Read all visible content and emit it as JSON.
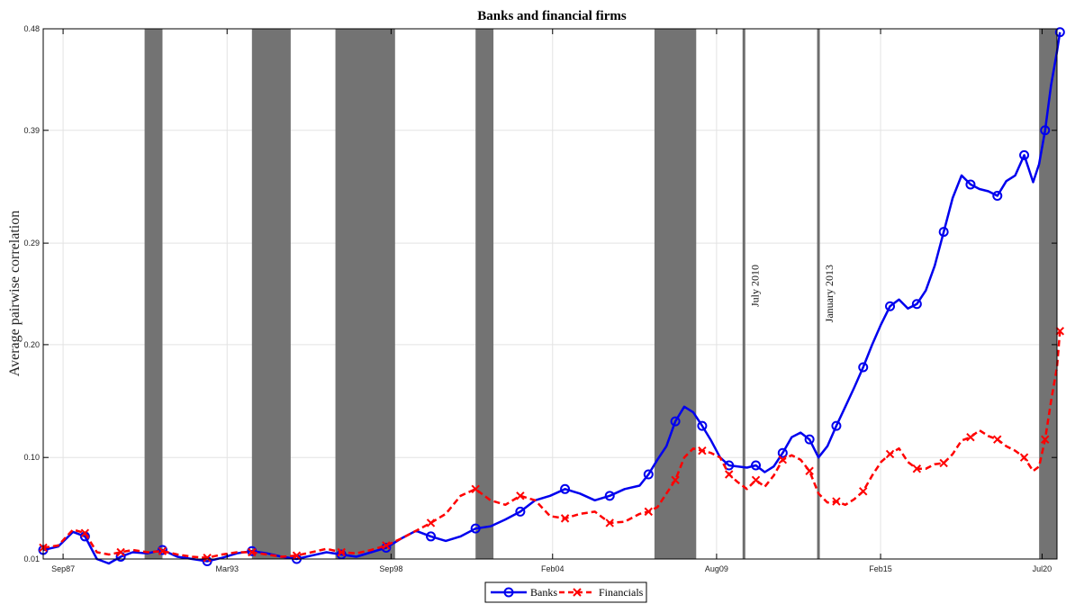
{
  "chart_data": {
    "type": "line",
    "title": "Banks and financial firms",
    "xlabel": "",
    "ylabel": "Average pairwise correlation",
    "x_start": "Jan87",
    "x_end": "Dec20",
    "xticks": [
      "Sep87",
      "Mar93",
      "Sep98",
      "Feb04",
      "Aug09",
      "Feb15",
      "Jul20"
    ],
    "yticks": [
      "0.01",
      "0.10",
      "0.20",
      "0.29",
      "0.39",
      "0.48"
    ],
    "ylim": [
      0.01,
      0.48
    ],
    "grid": true,
    "legend_position": "bottom-center",
    "shaded_periods": [
      [
        "1990.4",
        "1991.0"
      ],
      [
        "1994.0",
        "1995.3"
      ],
      [
        "1996.8",
        "1998.8"
      ],
      [
        "2001.5",
        "2002.1"
      ],
      [
        "2007.5",
        "2008.9"
      ]
    ],
    "shaded_end_period": [
      "2020.4",
      "2021.2"
    ],
    "vertical_lines": [
      {
        "x": "2010.5",
        "label": "July 2010"
      },
      {
        "x": "2013.0",
        "label": "January 2013"
      }
    ],
    "series": [
      {
        "name": "Banks",
        "color": "#0000ee",
        "dash": "solid",
        "marker": "circle",
        "x": [
          1987.0,
          1987.5,
          1988.0,
          1988.4,
          1988.8,
          1989.2,
          1989.6,
          1990.0,
          1990.5,
          1991.0,
          1991.5,
          1992.0,
          1992.5,
          1993.0,
          1993.5,
          1994.0,
          1994.5,
          1995.0,
          1995.5,
          1996.0,
          1996.5,
          1997.0,
          1997.5,
          1998.0,
          1998.5,
          1999.0,
          1999.5,
          2000.0,
          2000.5,
          2001.0,
          2001.5,
          2002.0,
          2002.5,
          2003.0,
          2003.5,
          2004.0,
          2004.5,
          2005.0,
          2005.5,
          2006.0,
          2006.5,
          2007.0,
          2007.3,
          2007.6,
          2007.9,
          2008.2,
          2008.5,
          2008.8,
          2009.1,
          2009.4,
          2009.7,
          2010.0,
          2010.3,
          2010.6,
          2010.9,
          2011.2,
          2011.5,
          2011.8,
          2012.1,
          2012.4,
          2012.7,
          2013.0,
          2013.3,
          2013.6,
          2013.9,
          2014.2,
          2014.5,
          2014.8,
          2015.1,
          2015.4,
          2015.7,
          2016.0,
          2016.3,
          2016.6,
          2016.9,
          2017.2,
          2017.5,
          2017.8,
          2018.1,
          2018.4,
          2018.7,
          2019.0,
          2019.3,
          2019.6,
          2019.9,
          2020.2,
          2020.4,
          2020.6,
          2020.8,
          2021.0,
          2021.1
        ],
        "values": [
          0.018,
          0.021,
          0.034,
          0.03,
          0.01,
          0.006,
          0.012,
          0.016,
          0.015,
          0.018,
          0.012,
          0.01,
          0.008,
          0.011,
          0.015,
          0.017,
          0.015,
          0.012,
          0.01,
          0.013,
          0.016,
          0.014,
          0.012,
          0.016,
          0.02,
          0.028,
          0.035,
          0.03,
          0.026,
          0.03,
          0.037,
          0.039,
          0.045,
          0.052,
          0.062,
          0.066,
          0.072,
          0.068,
          0.062,
          0.066,
          0.072,
          0.075,
          0.085,
          0.098,
          0.11,
          0.132,
          0.145,
          0.14,
          0.128,
          0.115,
          0.1,
          0.093,
          0.092,
          0.091,
          0.093,
          0.087,
          0.092,
          0.104,
          0.118,
          0.122,
          0.116,
          0.1,
          0.11,
          0.128,
          0.145,
          0.162,
          0.18,
          0.2,
          0.218,
          0.234,
          0.24,
          0.232,
          0.236,
          0.248,
          0.27,
          0.3,
          0.33,
          0.35,
          0.342,
          0.338,
          0.336,
          0.332,
          0.345,
          0.35,
          0.368,
          0.344,
          0.36,
          0.39,
          0.43,
          0.46,
          0.477
        ]
      },
      {
        "name": "Financials",
        "color": "#ff0000",
        "dash": "dashed",
        "marker": "x",
        "x": [
          1987.0,
          1987.5,
          1988.0,
          1988.4,
          1988.8,
          1989.2,
          1989.6,
          1990.0,
          1990.5,
          1991.0,
          1991.5,
          1992.0,
          1992.5,
          1993.0,
          1993.5,
          1994.0,
          1994.5,
          1995.0,
          1995.5,
          1996.0,
          1996.5,
          1997.0,
          1997.5,
          1998.0,
          1998.5,
          1999.0,
          1999.5,
          2000.0,
          2000.5,
          2001.0,
          2001.5,
          2002.0,
          2002.5,
          2003.0,
          2003.5,
          2004.0,
          2004.5,
          2005.0,
          2005.5,
          2006.0,
          2006.5,
          2007.0,
          2007.3,
          2007.6,
          2007.9,
          2008.2,
          2008.5,
          2008.8,
          2009.1,
          2009.4,
          2009.7,
          2010.0,
          2010.3,
          2010.6,
          2010.9,
          2011.2,
          2011.5,
          2011.8,
          2012.1,
          2012.4,
          2012.7,
          2013.0,
          2013.3,
          2013.6,
          2013.9,
          2014.2,
          2014.5,
          2014.8,
          2015.1,
          2015.4,
          2015.7,
          2016.0,
          2016.3,
          2016.6,
          2016.9,
          2017.2,
          2017.5,
          2017.8,
          2018.1,
          2018.4,
          2018.7,
          2019.0,
          2019.3,
          2019.6,
          2019.9,
          2020.2,
          2020.4,
          2020.6,
          2020.8,
          2021.0,
          2021.1
        ],
        "values": [
          0.02,
          0.022,
          0.036,
          0.033,
          0.016,
          0.014,
          0.016,
          0.018,
          0.016,
          0.017,
          0.014,
          0.012,
          0.011,
          0.014,
          0.016,
          0.016,
          0.014,
          0.012,
          0.013,
          0.016,
          0.019,
          0.016,
          0.015,
          0.018,
          0.022,
          0.028,
          0.035,
          0.042,
          0.05,
          0.066,
          0.072,
          0.062,
          0.058,
          0.066,
          0.062,
          0.048,
          0.046,
          0.05,
          0.052,
          0.042,
          0.043,
          0.05,
          0.052,
          0.056,
          0.068,
          0.08,
          0.1,
          0.108,
          0.106,
          0.104,
          0.1,
          0.085,
          0.078,
          0.072,
          0.08,
          0.074,
          0.084,
          0.098,
          0.102,
          0.098,
          0.088,
          0.068,
          0.06,
          0.061,
          0.058,
          0.063,
          0.07,
          0.084,
          0.096,
          0.103,
          0.108,
          0.096,
          0.09,
          0.09,
          0.094,
          0.095,
          0.103,
          0.115,
          0.118,
          0.124,
          0.119,
          0.116,
          0.11,
          0.106,
          0.1,
          0.088,
          0.092,
          0.116,
          0.15,
          0.18,
          0.212
        ]
      }
    ]
  }
}
